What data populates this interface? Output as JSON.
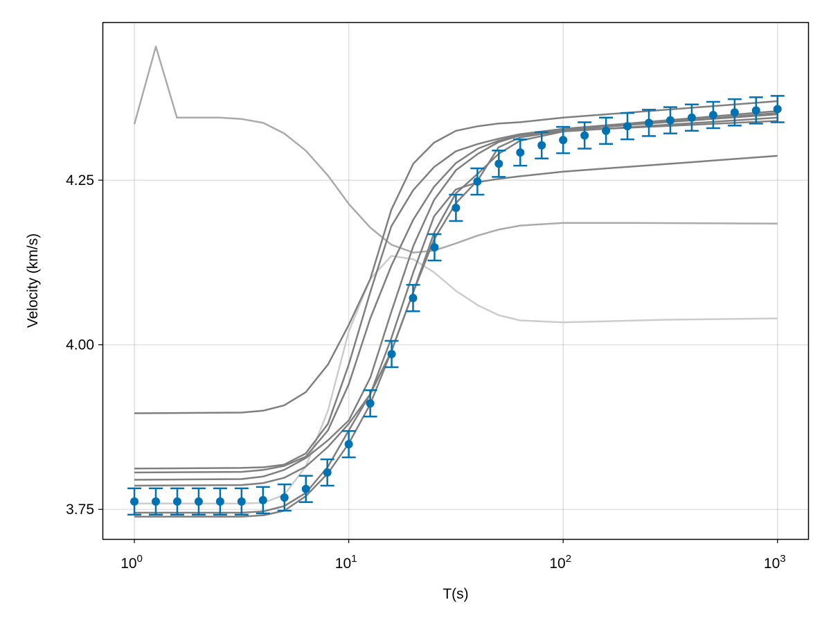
{
  "chart_data": {
    "type": "line",
    "title": "",
    "xlabel": "T(s)",
    "ylabel": "Velocity (km/s)",
    "xscale": "log10",
    "xlim": [
      0.71,
      1400
    ],
    "ylim": [
      3.705,
      4.49
    ],
    "grid": true,
    "x_ticks": [
      {
        "value": 1,
        "base": "10",
        "exp": "0"
      },
      {
        "value": 10,
        "base": "10",
        "exp": "1"
      },
      {
        "value": 100,
        "base": "10",
        "exp": "2"
      },
      {
        "value": 1000,
        "base": "10",
        "exp": "3"
      }
    ],
    "y_ticks": [
      {
        "value": 3.75,
        "label": "3.75"
      },
      {
        "value": 4.0,
        "label": "4.00"
      },
      {
        "value": 4.25,
        "label": "4.25"
      }
    ],
    "colors": {
      "observed": "#0072b2",
      "model": "#7f7f7f",
      "model_light": "#aaaaaa",
      "model_lighter": "#cccccc"
    },
    "model_curves": [
      {
        "shade": "model_light",
        "x": [
          1,
          1.26,
          1.58,
          2.5,
          3.16,
          4,
          5,
          6.3,
          8,
          10,
          12.6,
          15.8,
          20,
          25,
          31.6,
          40,
          50,
          63,
          100,
          200,
          1000
        ],
        "y": [
          4.335,
          4.453,
          4.345,
          4.345,
          4.343,
          4.337,
          4.321,
          4.295,
          4.257,
          4.214,
          4.178,
          4.152,
          4.14,
          4.143,
          4.154,
          4.166,
          4.175,
          4.181,
          4.185,
          4.185,
          4.184
        ]
      },
      {
        "shade": "model_lighter",
        "x": [
          1,
          3.16,
          4,
          5,
          6.3,
          8,
          10,
          12.6,
          15.8,
          20,
          25,
          31.6,
          40,
          50,
          63,
          100,
          300,
          1000
        ],
        "y": [
          3.759,
          3.759,
          3.76,
          3.772,
          3.815,
          3.9,
          4.02,
          4.1,
          4.135,
          4.13,
          4.11,
          4.082,
          4.06,
          4.045,
          4.037,
          4.034,
          4.038,
          4.04
        ]
      },
      {
        "shade": "model",
        "x": [
          1,
          3.16,
          4,
          5,
          6.3,
          8,
          10,
          12.6,
          15.8,
          20,
          25,
          31.6,
          40,
          50,
          63,
          100,
          1000
        ],
        "y": [
          3.896,
          3.897,
          3.9,
          3.908,
          3.928,
          3.97,
          4.03,
          4.1,
          4.205,
          4.275,
          4.307,
          4.325,
          4.332,
          4.336,
          4.338,
          4.345,
          4.37
        ]
      },
      {
        "shade": "model",
        "x": [
          1,
          3.16,
          4,
          5,
          6.3,
          8,
          10,
          12.6,
          15.8,
          20,
          25,
          31.6,
          40,
          50,
          63,
          100,
          1000
        ],
        "y": [
          3.812,
          3.813,
          3.814,
          3.818,
          3.835,
          3.88,
          3.97,
          4.08,
          4.18,
          4.235,
          4.27,
          4.294,
          4.305,
          4.313,
          4.32,
          4.328,
          4.355
        ]
      },
      {
        "shade": "model",
        "x": [
          1,
          3.16,
          4,
          5,
          6.3,
          8,
          10,
          12.6,
          15.8,
          20,
          25,
          31.6,
          40,
          50,
          63,
          100,
          1000
        ],
        "y": [
          3.806,
          3.807,
          3.81,
          3.816,
          3.83,
          3.87,
          3.94,
          4.04,
          4.12,
          4.19,
          4.24,
          4.276,
          4.298,
          4.31,
          4.318,
          4.326,
          4.352
        ]
      },
      {
        "shade": "model",
        "x": [
          1,
          3.16,
          4,
          5,
          6.3,
          8,
          10,
          12.6,
          15.8,
          20,
          25,
          31.6,
          40,
          50,
          63,
          100,
          1000
        ],
        "y": [
          3.795,
          3.796,
          3.8,
          3.81,
          3.828,
          3.855,
          3.885,
          3.95,
          4.05,
          4.15,
          4.22,
          4.265,
          4.29,
          4.308,
          4.318,
          4.327,
          4.35
        ]
      },
      {
        "shade": "model",
        "x": [
          1,
          3.16,
          4,
          5,
          6.3,
          8,
          10,
          12.6,
          15.8,
          20,
          25,
          31.6,
          40,
          50,
          63,
          100,
          1000
        ],
        "y": [
          3.786,
          3.787,
          3.79,
          3.798,
          3.815,
          3.845,
          3.88,
          3.925,
          3.99,
          4.08,
          4.17,
          4.23,
          4.26,
          4.29,
          4.31,
          4.324,
          4.345
        ]
      },
      {
        "shade": "model",
        "x": [
          1,
          3.16,
          4,
          5,
          6.3,
          8,
          10,
          12.6,
          15.8,
          20,
          25,
          31.6,
          40,
          50,
          63,
          100,
          1000
        ],
        "y": [
          3.739,
          3.739,
          3.741,
          3.748,
          3.77,
          3.805,
          3.85,
          3.91,
          3.99,
          4.08,
          4.16,
          4.215,
          4.25,
          4.3,
          4.315,
          4.325,
          4.34
        ]
      },
      {
        "shade": "model",
        "x": [
          1,
          3.16,
          4,
          5,
          6.3,
          8,
          10,
          12.6,
          15.8,
          20,
          25,
          31.6,
          40,
          50,
          63,
          100,
          1000
        ],
        "y": [
          3.745,
          3.745,
          3.747,
          3.755,
          3.775,
          3.815,
          3.87,
          3.925,
          4.01,
          4.11,
          4.195,
          4.236,
          4.247,
          4.252,
          4.256,
          4.263,
          4.287
        ]
      }
    ],
    "observed": {
      "log10_x_step": 0.1,
      "x": [
        1,
        1.259,
        1.585,
        1.995,
        2.512,
        3.162,
        3.981,
        5.012,
        6.31,
        7.943,
        10,
        12.59,
        15.85,
        19.95,
        25.12,
        31.62,
        39.81,
        50.12,
        63.1,
        79.43,
        100,
        125.9,
        158.5,
        199.5,
        251.2,
        316.2,
        398.1,
        501.2,
        631,
        794.3,
        1000
      ],
      "y": [
        3.762,
        3.762,
        3.762,
        3.762,
        3.762,
        3.762,
        3.764,
        3.768,
        3.781,
        3.806,
        3.849,
        3.911,
        3.986,
        4.071,
        4.148,
        4.208,
        4.248,
        4.275,
        4.292,
        4.303,
        4.311,
        4.318,
        4.325,
        4.332,
        4.337,
        4.341,
        4.345,
        4.349,
        4.353,
        4.356,
        4.358
      ],
      "error": 0.02
    }
  }
}
